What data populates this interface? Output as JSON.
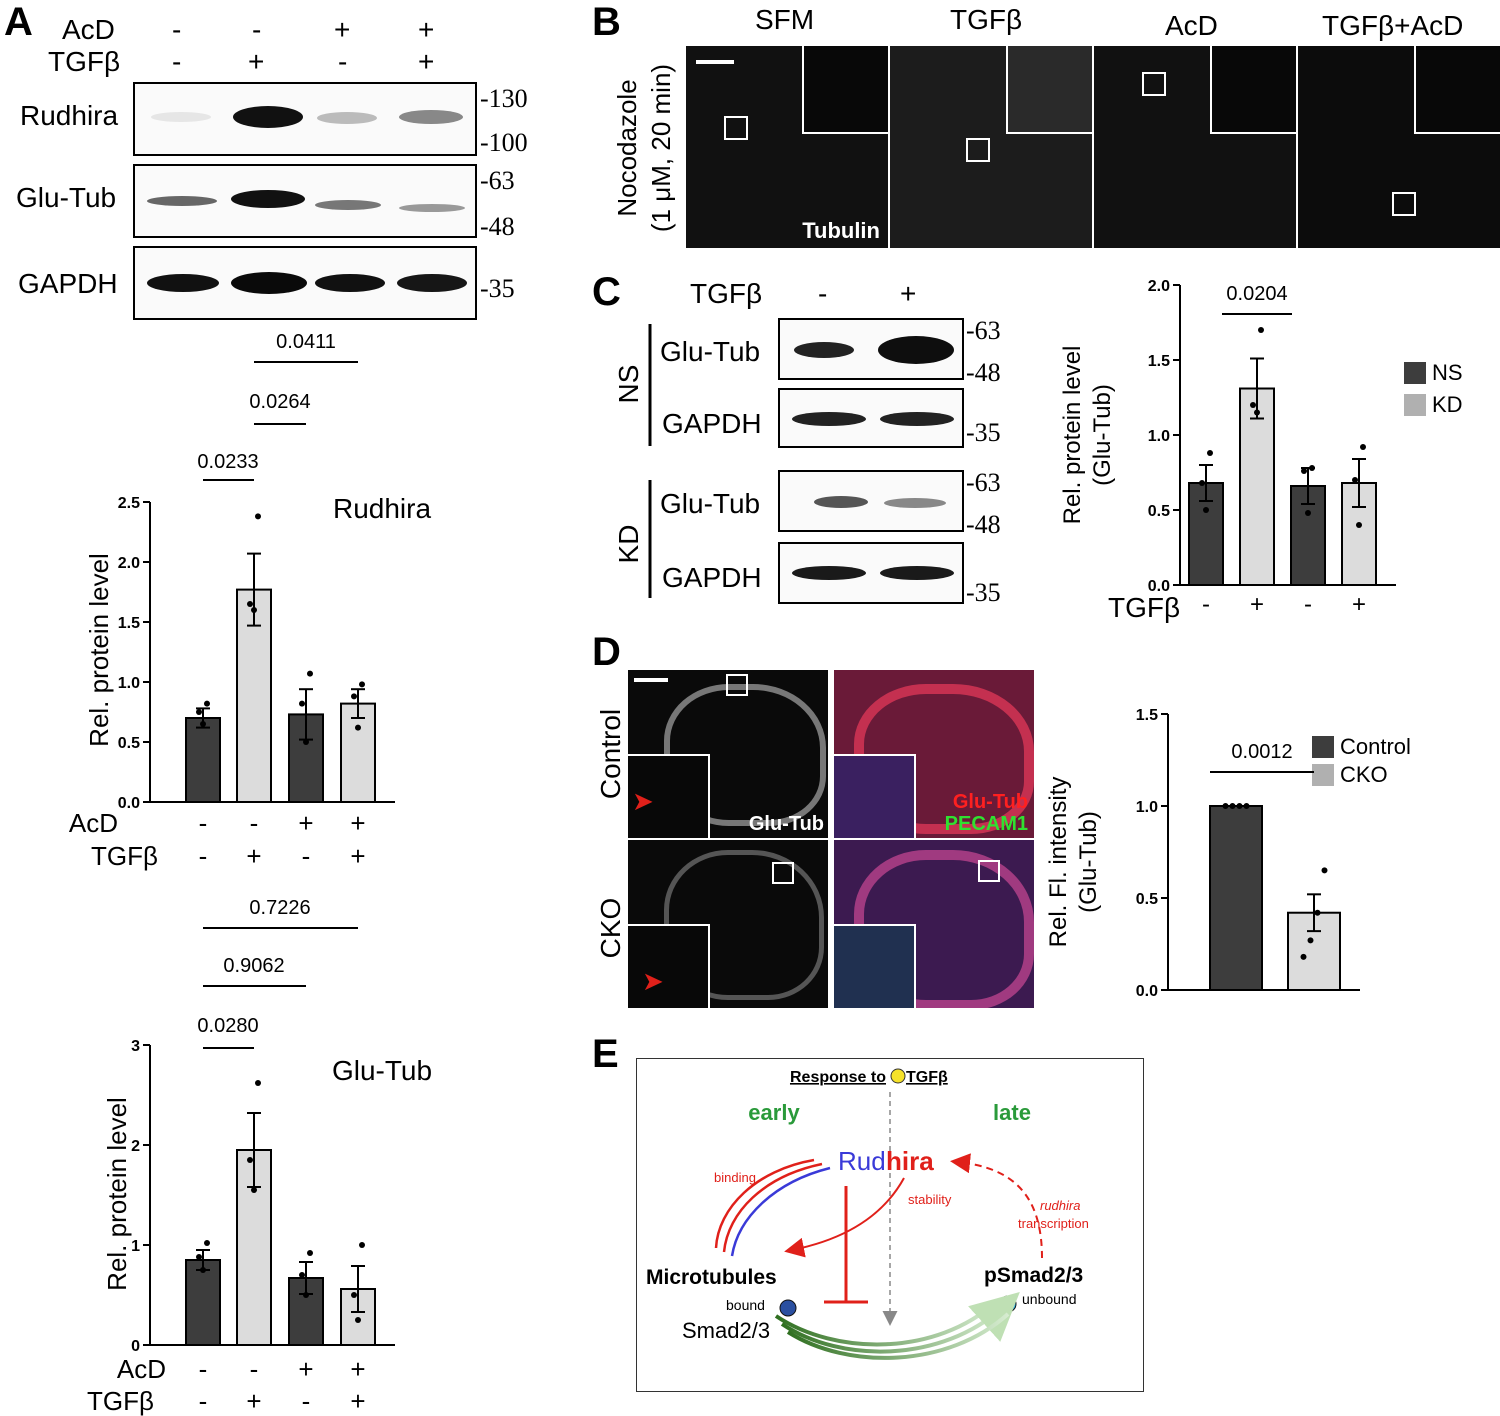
{
  "panels": {
    "a": "A",
    "b": "B",
    "c": "C",
    "d": "D",
    "e": "E"
  },
  "panelA": {
    "acd_label": "AcD",
    "tgfb_label": "TGFβ",
    "acd_signs": [
      "-",
      "-",
      "+",
      "+"
    ],
    "tgfb_signs": [
      "-",
      "+",
      "-",
      "+"
    ],
    "blots": [
      "Rudhira",
      "Glu-Tub",
      "GAPDH"
    ],
    "mw": [
      "-130",
      "-100",
      "-63",
      "-48",
      "-35"
    ],
    "rudhira_chart": {
      "title": "Rudhira",
      "ylabel": "Rel. protein level",
      "p_values": [
        "0.0411",
        "0.0264",
        "0.0233"
      ]
    },
    "glutub_chart": {
      "title": "Glu-Tub",
      "ylabel": "Rel. protein level",
      "p_values": [
        "0.7226",
        "0.9062",
        "0.0280"
      ]
    }
  },
  "panelB": {
    "columns": [
      "SFM",
      "TGFβ",
      "AcD",
      "TGFβ+AcD"
    ],
    "row_label_1": "Nocodazole",
    "row_label_2": "(1 μM, 20 min)",
    "stain": "Tubulin"
  },
  "panelC": {
    "tgfb_label": "TGFβ",
    "signs": [
      "-",
      "+"
    ],
    "groups": [
      "NS",
      "KD"
    ],
    "blots": [
      "Glu-Tub",
      "GAPDH"
    ],
    "mw": [
      "-63",
      "-48",
      "-35"
    ],
    "chart": {
      "ylabel1": "Rel. protein level",
      "ylabel2": "(Glu-Tub)",
      "p_value": "0.0204",
      "xlabel": "TGFβ",
      "x_signs": [
        "-",
        "+",
        "-",
        "+"
      ]
    }
  },
  "panelD": {
    "rows": [
      "Control",
      "CKO"
    ],
    "stain1": "Glu-Tub",
    "stain2a": "Glu-Tub",
    "stain2b": "PECAM1",
    "chart": {
      "ylabel1": "Rel. Fl. intensity",
      "ylabel2": "(Glu-Tub)",
      "p_value": "0.0012"
    }
  },
  "panelE": {
    "title": "Response to",
    "tgf": "TGFβ",
    "early": "early",
    "late": "late",
    "rud_blue": "Rud",
    "rud_red": "hira",
    "binding": "binding",
    "stability": "stability",
    "rudhira_it": "rudhira",
    "transcription": "transcription",
    "microtubules": "Microtubules",
    "psmad": "pSmad2/3",
    "bound": "bound",
    "unbound": "unbound",
    "smad": "Smad2/3"
  },
  "colors": {
    "dark_bar": "#3d3d3d",
    "light_bar": "#dcdcdc",
    "red": "#e0201a",
    "blue": "#3a3ad8",
    "green": "#2a9a3a"
  },
  "chart_data": [
    {
      "type": "bar",
      "title": "Rudhira",
      "ylabel": "Rel. protein level",
      "ylim": [
        0,
        2.5
      ],
      "yticks": [
        "0.0",
        "0.5",
        "1.0",
        "1.5",
        "2.0",
        "2.5"
      ],
      "categories": [
        "-/-",
        "-/+",
        "+/-",
        "+/+"
      ],
      "values": [
        0.7,
        1.77,
        0.73,
        0.82
      ],
      "errors": [
        0.08,
        0.3,
        0.21,
        0.12
      ],
      "points": [
        [
          0.65,
          0.75,
          0.82
        ],
        [
          1.6,
          1.65,
          2.38
        ],
        [
          0.5,
          0.82,
          1.07
        ],
        [
          0.62,
          0.88,
          0.98
        ]
      ],
      "colors": [
        "#3d3d3d",
        "#dcdcdc",
        "#3d3d3d",
        "#dcdcdc"
      ]
    },
    {
      "type": "bar",
      "title": "Glu-Tub",
      "ylabel": "Rel. protein level",
      "ylim": [
        0,
        3
      ],
      "yticks": [
        "0",
        "1",
        "2",
        "3"
      ],
      "categories": [
        "-/-",
        "-/+",
        "+/-",
        "+/+"
      ],
      "values": [
        0.85,
        1.95,
        0.67,
        0.56
      ],
      "errors": [
        0.1,
        0.37,
        0.16,
        0.23
      ],
      "points": [
        [
          0.75,
          0.88,
          1.02
        ],
        [
          1.55,
          1.85,
          2.62
        ],
        [
          0.5,
          0.7,
          0.92
        ],
        [
          0.25,
          0.5,
          1.0
        ]
      ],
      "colors": [
        "#3d3d3d",
        "#dcdcdc",
        "#3d3d3d",
        "#dcdcdc"
      ]
    },
    {
      "type": "bar",
      "ylabel": "Rel. protein level (Glu-Tub)",
      "ylim": [
        0,
        2.0
      ],
      "yticks": [
        "0.0",
        "0.5",
        "1.0",
        "1.5",
        "2.0"
      ],
      "categories": [
        "NS -",
        "KD +",
        "NS -",
        "KD +"
      ],
      "values": [
        0.68,
        1.31,
        0.66,
        0.68
      ],
      "errors": [
        0.12,
        0.2,
        0.12,
        0.16
      ],
      "points": [
        [
          0.5,
          0.68,
          0.88
        ],
        [
          1.15,
          1.2,
          1.7
        ],
        [
          0.48,
          0.76,
          0.78
        ],
        [
          0.4,
          0.7,
          0.92
        ]
      ],
      "colors": [
        "#3d3d3d",
        "#dcdcdc",
        "#3d3d3d",
        "#dcdcdc"
      ],
      "legend": [
        {
          "name": "NS",
          "color": "#3d3d3d"
        },
        {
          "name": "KD",
          "color": "#b0b0b0"
        }
      ]
    },
    {
      "type": "bar",
      "ylabel": "Rel. Fl. intensity (Glu-Tub)",
      "ylim": [
        0,
        1.5
      ],
      "yticks": [
        "0.0",
        "0.5",
        "1.0",
        "1.5"
      ],
      "categories": [
        "Control",
        "CKO"
      ],
      "values": [
        1.0,
        0.42
      ],
      "errors": [
        0,
        0.1
      ],
      "points": [
        [
          1.0,
          1.0,
          1.0,
          1.0
        ],
        [
          0.18,
          0.27,
          0.42,
          0.65
        ]
      ],
      "colors": [
        "#3d3d3d",
        "#dcdcdc"
      ],
      "legend": [
        {
          "name": "Control",
          "color": "#3d3d3d"
        },
        {
          "name": "CKO",
          "color": "#b0b0b0"
        }
      ]
    }
  ]
}
